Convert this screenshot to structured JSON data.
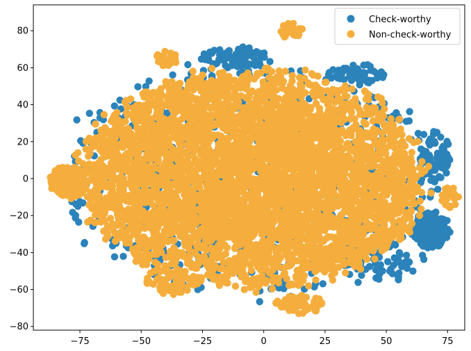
{
  "chart_data": {
    "type": "scatter",
    "title": "",
    "xlabel": "",
    "ylabel": "",
    "xlim": [
      -94,
      82
    ],
    "ylim": [
      -82,
      94
    ],
    "x_ticks": [
      -75,
      -50,
      -25,
      0,
      25,
      50,
      75
    ],
    "x_tick_labels": [
      "−75",
      "−50",
      "−25",
      "0",
      "25",
      "50",
      "75"
    ],
    "y_ticks": [
      -80,
      -60,
      -40,
      -20,
      0,
      20,
      40,
      60,
      80
    ],
    "y_tick_labels": [
      "−80",
      "−60",
      "−40",
      "−20",
      "0",
      "20",
      "40",
      "60",
      "80"
    ],
    "grid": false,
    "legend_position": "top-right",
    "series": [
      {
        "name": "Check-worthy",
        "color": "#2b83ba",
        "clusters": [
          {
            "cx": -5,
            "cy": 0,
            "rx": 78,
            "ry": 66,
            "n": 700
          },
          {
            "cx": 68,
            "cy": -28,
            "rx": 8,
            "ry": 10,
            "n": 140
          },
          {
            "cx": 70,
            "cy": 12,
            "rx": 7,
            "ry": 14,
            "n": 80
          },
          {
            "cx": -12,
            "cy": 66,
            "rx": 14,
            "ry": 6,
            "n": 70
          },
          {
            "cx": 38,
            "cy": 56,
            "rx": 12,
            "ry": 6,
            "n": 50
          },
          {
            "cx": 50,
            "cy": -45,
            "rx": 18,
            "ry": 10,
            "n": 60
          }
        ]
      },
      {
        "name": "Non-check-worthy",
        "color": "#f5ae3d",
        "clusters": [
          {
            "cx": -5,
            "cy": 0,
            "rx": 72,
            "ry": 60,
            "n": 2600
          },
          {
            "cx": -20,
            "cy": 10,
            "rx": 50,
            "ry": 45,
            "n": 1200
          },
          {
            "cx": 20,
            "cy": -10,
            "rx": 45,
            "ry": 40,
            "n": 900
          },
          {
            "cx": -80,
            "cy": -2,
            "rx": 8,
            "ry": 9,
            "n": 170
          },
          {
            "cx": 11,
            "cy": 80,
            "rx": 5,
            "ry": 4,
            "n": 40
          },
          {
            "cx": 15,
            "cy": -68,
            "rx": 10,
            "ry": 5,
            "n": 60
          },
          {
            "cx": -40,
            "cy": 65,
            "rx": 5,
            "ry": 4,
            "n": 25
          },
          {
            "cx": 76,
            "cy": -10,
            "rx": 4,
            "ry": 6,
            "n": 25
          },
          {
            "cx": -38,
            "cy": -55,
            "rx": 10,
            "ry": 8,
            "n": 60
          }
        ]
      }
    ]
  }
}
